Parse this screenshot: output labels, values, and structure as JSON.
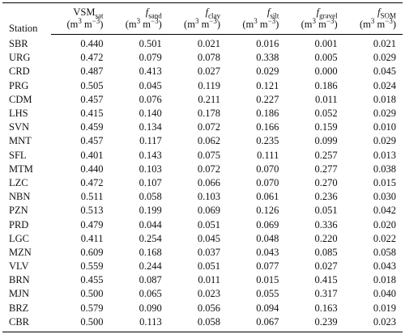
{
  "table": {
    "header": {
      "station": "Station",
      "columns": [
        {
          "main": "VSM",
          "sub": "sat",
          "italic": false
        },
        {
          "main": "f",
          "sub": "sand",
          "italic": true
        },
        {
          "main": "f",
          "sub": "clay",
          "italic": true
        },
        {
          "main": "f",
          "sub": "silt",
          "italic": true
        },
        {
          "main": "f",
          "sub": "gravel",
          "italic": true
        },
        {
          "main": "f",
          "sub": "SOM",
          "italic": true
        }
      ],
      "unit_open": "(m",
      "unit_sup1": "3",
      "unit_mid": " m",
      "unit_sup2": "−3",
      "unit_close": ")"
    },
    "rows": [
      [
        "SBR",
        "0.440",
        "0.501",
        "0.021",
        "0.016",
        "0.001",
        "0.021"
      ],
      [
        "URG",
        "0.472",
        "0.079",
        "0.078",
        "0.338",
        "0.005",
        "0.029"
      ],
      [
        "CRD",
        "0.487",
        "0.413",
        "0.027",
        "0.029",
        "0.000",
        "0.045"
      ],
      [
        "PRG",
        "0.505",
        "0.045",
        "0.119",
        "0.121",
        "0.186",
        "0.024"
      ],
      [
        "CDM",
        "0.457",
        "0.076",
        "0.211",
        "0.227",
        "0.011",
        "0.018"
      ],
      [
        "LHS",
        "0.415",
        "0.140",
        "0.178",
        "0.186",
        "0.052",
        "0.029"
      ],
      [
        "SVN",
        "0.459",
        "0.134",
        "0.072",
        "0.166",
        "0.159",
        "0.010"
      ],
      [
        "MNT",
        "0.457",
        "0.117",
        "0.062",
        "0.235",
        "0.099",
        "0.029"
      ],
      [
        "SFL",
        "0.401",
        "0.143",
        "0.075",
        "0.111",
        "0.257",
        "0.013"
      ],
      [
        "MTM",
        "0.440",
        "0.103",
        "0.072",
        "0.070",
        "0.277",
        "0.038"
      ],
      [
        "LZC",
        "0.472",
        "0.107",
        "0.066",
        "0.070",
        "0.270",
        "0.015"
      ],
      [
        "NBN",
        "0.511",
        "0.058",
        "0.103",
        "0.061",
        "0.236",
        "0.030"
      ],
      [
        "PZN",
        "0.513",
        "0.199",
        "0.069",
        "0.126",
        "0.051",
        "0.042"
      ],
      [
        "PRD",
        "0.479",
        "0.044",
        "0.051",
        "0.069",
        "0.336",
        "0.020"
      ],
      [
        "LGC",
        "0.411",
        "0.254",
        "0.045",
        "0.048",
        "0.220",
        "0.022"
      ],
      [
        "MZN",
        "0.609",
        "0.168",
        "0.037",
        "0.043",
        "0.085",
        "0.058"
      ],
      [
        "VLV",
        "0.559",
        "0.244",
        "0.051",
        "0.077",
        "0.027",
        "0.043"
      ],
      [
        "BRN",
        "0.455",
        "0.087",
        "0.011",
        "0.015",
        "0.415",
        "0.018"
      ],
      [
        "MJN",
        "0.500",
        "0.065",
        "0.023",
        "0.055",
        "0.317",
        "0.040"
      ],
      [
        "BRZ",
        "0.579",
        "0.090",
        "0.056",
        "0.094",
        "0.163",
        "0.019"
      ],
      [
        "CBR",
        "0.500",
        "0.113",
        "0.058",
        "0.067",
        "0.239",
        "0.023"
      ]
    ]
  }
}
